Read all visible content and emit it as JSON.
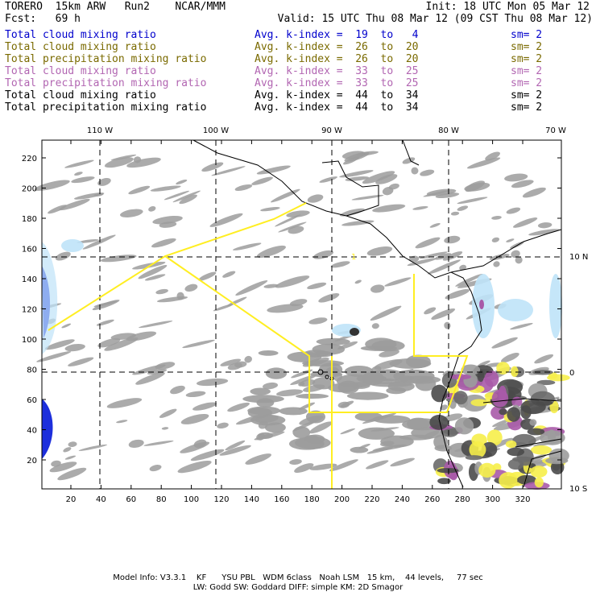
{
  "header": {
    "title": "TORERO  15km ARW   Run2    NCAR/MMM",
    "init": "Init: 18 UTC Mon 05 Mar 12",
    "fcst": "Fcst:   69 h",
    "valid": "Valid: 15 UTC Thu 08 Mar 12 (09 CST Thu 08 Mar 12)"
  },
  "legend": [
    {
      "field": "Total cloud mixing ratio",
      "index": "Avg. k-index =  19  to   4",
      "sm": "sm= 2",
      "color": "#0000cc"
    },
    {
      "field": "Total cloud mixing ratio",
      "index": "Avg. k-index =  26  to  20",
      "sm": "sm= 2",
      "color": "#7a6a00"
    },
    {
      "field": "Total precipitation mixing ratio",
      "index": "Avg. k-index =  26  to  20",
      "sm": "sm= 2",
      "color": "#7a6a00"
    },
    {
      "field": "Total cloud mixing ratio",
      "index": "Avg. k-index =  33  to  25",
      "sm": "sm= 2",
      "color": "#b266b2"
    },
    {
      "field": "Total precipitation mixing ratio",
      "index": "Avg. k-index =  33  to  25",
      "sm": "sm= 2",
      "color": "#b266b2"
    },
    {
      "field": "Total cloud mixing ratio",
      "index": "Avg. k-index =  44  to  34",
      "sm": "sm= 2",
      "color": "#000000"
    },
    {
      "field": "Total precipitation mixing ratio",
      "index": "Avg. k-index =  44  to  34",
      "sm": "sm= 2",
      "color": "#000000"
    }
  ],
  "map": {
    "x_ticks": [
      "20",
      "40",
      "60",
      "80",
      "100",
      "120",
      "140",
      "160",
      "180",
      "200",
      "220",
      "240",
      "260",
      "280",
      "300",
      "320"
    ],
    "y_ticks": [
      "20",
      "40",
      "60",
      "80",
      "100",
      "120",
      "140",
      "160",
      "180",
      "200",
      "220"
    ],
    "lon_labels": [
      "110 W",
      "100 W",
      "90 W",
      "80 W",
      "70 W"
    ],
    "lat_labels": [
      "10 N",
      "0",
      "10 S"
    ],
    "route_label": "1",
    "route_color": "#ffee22",
    "coast_color": "#000000",
    "cloud_color": "#9c9c9c"
  },
  "footer": {
    "line1": "Model Info: V3.3.1    KF      YSU PBL   WDM 6class   Noah LSM   15 km,    44 levels,     77 sec",
    "line2": "LW: Godd SW: Goddard DIFF: simple KM: 2D Smagor"
  }
}
